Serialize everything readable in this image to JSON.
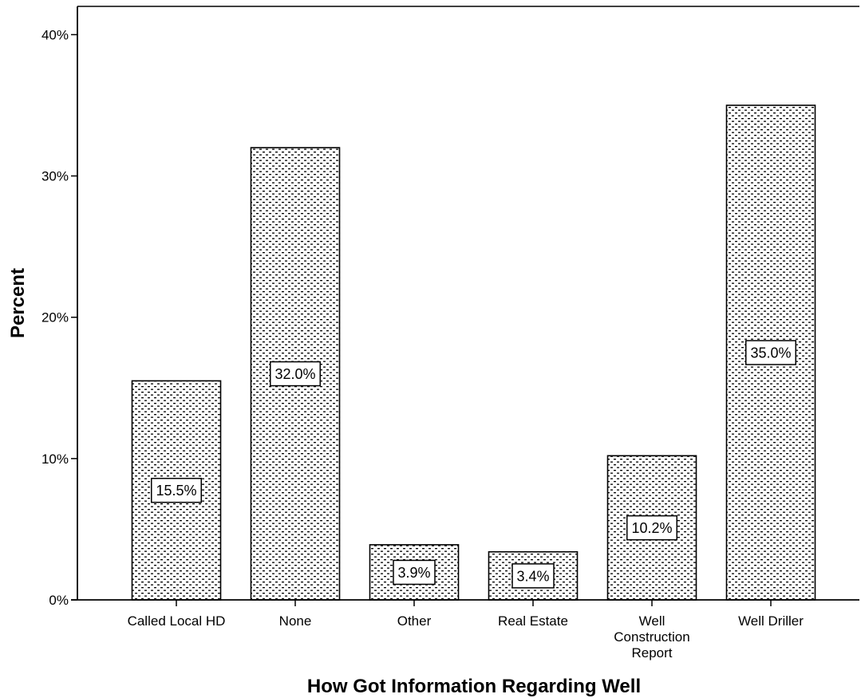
{
  "chart_data": {
    "type": "bar",
    "title": "",
    "xlabel": "How Got Information Regarding Well",
    "ylabel": "Percent",
    "ylim": [
      0,
      42
    ],
    "yticks": [
      {
        "value": 0,
        "label": "0%"
      },
      {
        "value": 10,
        "label": "10%"
      },
      {
        "value": 20,
        "label": "20%"
      },
      {
        "value": 30,
        "label": "30%"
      },
      {
        "value": 40,
        "label": "40%"
      }
    ],
    "categories": [
      [
        "Called Local HD"
      ],
      [
        "None"
      ],
      [
        "Other"
      ],
      [
        "Real Estate"
      ],
      [
        "Well",
        "Construction",
        "Report"
      ],
      [
        "Well Driller"
      ]
    ],
    "values": [
      15.5,
      32.0,
      3.9,
      3.4,
      10.2,
      35.0
    ],
    "data_labels": [
      "15.5%",
      "32.0%",
      "3.9%",
      "3.4%",
      "10.2%",
      "35.0%"
    ],
    "fill_pattern": "dotted",
    "bar_color": "#ffffff",
    "line_color": "#000000",
    "grid": false,
    "legend": "none"
  }
}
